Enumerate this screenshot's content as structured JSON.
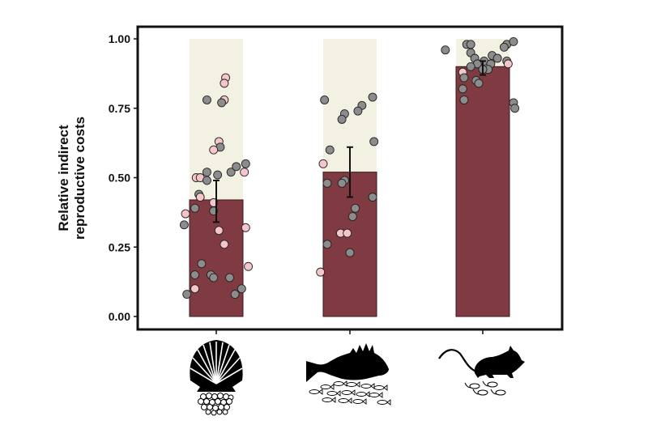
{
  "chart_data": {
    "type": "bar",
    "title": "",
    "xlabel": "",
    "ylabel": [
      "Relative indirect",
      "reproductive costs"
    ],
    "ylim": [
      0,
      1
    ],
    "yticks": [
      "0.00",
      "0.25",
      "0.50",
      "0.75",
      "1.00"
    ],
    "grid": false,
    "legend": null,
    "categories": [
      "scallop (eggs)",
      "fish (larvae)",
      "rodent (pups)"
    ],
    "category_icons": [
      "scallop-shell-with-eggs-icon",
      "fish-with-larvae-icon",
      "rodent-with-pups-icon"
    ],
    "values": [
      0.42,
      0.52,
      0.9
    ],
    "error_bars": [
      {
        "low": 0.34,
        "high": 0.49
      },
      {
        "low": 0.43,
        "high": 0.61
      },
      {
        "low": 0.87,
        "high": 0.92
      }
    ],
    "background_bar_value": 1.0,
    "colors": {
      "bar": "#7f3b41",
      "bar_edge": "#3a1a1c",
      "background_bar": "#f3f1e2",
      "point_gray": "#8c8c8c",
      "point_pink": "#f4c6cc",
      "point_edge": "#222222",
      "frame": "#111111"
    },
    "points": [
      [
        {
          "v": 0.86,
          "c": "pink",
          "dx": 0.35
        },
        {
          "v": 0.84,
          "c": "pink",
          "dx": 0.3
        },
        {
          "v": 0.78,
          "c": "pink",
          "dx": 0.3
        },
        {
          "v": 0.78,
          "c": "gray",
          "dx": -0.35
        },
        {
          "v": 0.77,
          "c": "gray",
          "dx": 0.2
        },
        {
          "v": 0.63,
          "c": "pink",
          "dx": 0.1
        },
        {
          "v": 0.61,
          "c": "gray",
          "dx": 0.15
        },
        {
          "v": 0.6,
          "c": "pink",
          "dx": -0.1
        },
        {
          "v": 0.52,
          "c": "gray",
          "dx": -0.35
        },
        {
          "v": 0.51,
          "c": "gray",
          "dx": 0.05
        },
        {
          "v": 0.52,
          "c": "gray",
          "dx": 0.55
        },
        {
          "v": 0.55,
          "c": "gray",
          "dx": 1.1
        },
        {
          "v": 0.54,
          "c": "gray",
          "dx": 0.75
        },
        {
          "v": 0.52,
          "c": "pink",
          "dx": 1.05
        },
        {
          "v": 0.5,
          "c": "pink",
          "dx": -0.75
        },
        {
          "v": 0.5,
          "c": "pink",
          "dx": -0.6
        },
        {
          "v": 0.49,
          "c": "gray",
          "dx": -0.35
        },
        {
          "v": 0.44,
          "c": "gray",
          "dx": -0.65
        },
        {
          "v": 0.43,
          "c": "pink",
          "dx": -0.6
        },
        {
          "v": 0.39,
          "c": "gray",
          "dx": -0.8
        },
        {
          "v": 0.37,
          "c": "pink",
          "dx": -1.15
        },
        {
          "v": 0.33,
          "c": "gray",
          "dx": -1.2
        },
        {
          "v": 0.41,
          "c": "pink",
          "dx": -0.1
        },
        {
          "v": 0.38,
          "c": "gray",
          "dx": -0.1
        },
        {
          "v": 0.32,
          "c": "pink",
          "dx": 1.1
        },
        {
          "v": 0.31,
          "c": "pink",
          "dx": 0.1
        },
        {
          "v": 0.26,
          "c": "pink",
          "dx": 0.3
        },
        {
          "v": 0.19,
          "c": "gray",
          "dx": -0.55
        },
        {
          "v": 0.18,
          "c": "pink",
          "dx": 1.2
        },
        {
          "v": 0.15,
          "c": "gray",
          "dx": -0.8
        },
        {
          "v": 0.15,
          "c": "gray",
          "dx": -0.2
        },
        {
          "v": 0.14,
          "c": "gray",
          "dx": -0.1
        },
        {
          "v": 0.14,
          "c": "gray",
          "dx": 0.5
        },
        {
          "v": 0.1,
          "c": "gray",
          "dx": 0.95
        },
        {
          "v": 0.1,
          "c": "pink",
          "dx": -0.8
        },
        {
          "v": 0.08,
          "c": "gray",
          "dx": 0.7
        },
        {
          "v": 0.08,
          "c": "gray",
          "dx": -1.1
        }
      ],
      [
        {
          "v": 0.78,
          "c": "gray",
          "dx": -0.95
        },
        {
          "v": 0.79,
          "c": "gray",
          "dx": 0.85
        },
        {
          "v": 0.76,
          "c": "gray",
          "dx": 0.45
        },
        {
          "v": 0.74,
          "c": "gray",
          "dx": 0.3
        },
        {
          "v": 0.73,
          "c": "gray",
          "dx": -0.2
        },
        {
          "v": 0.71,
          "c": "gray",
          "dx": -0.3
        },
        {
          "v": 0.63,
          "c": "gray",
          "dx": 0.9
        },
        {
          "v": 0.6,
          "c": "gray",
          "dx": -0.75
        },
        {
          "v": 0.55,
          "c": "pink",
          "dx": -1.0
        },
        {
          "v": 0.48,
          "c": "gray",
          "dx": -0.85
        },
        {
          "v": 0.49,
          "c": "gray",
          "dx": -0.2
        },
        {
          "v": 0.48,
          "c": "gray",
          "dx": -0.3
        },
        {
          "v": 0.43,
          "c": "gray",
          "dx": 0.85
        },
        {
          "v": 0.39,
          "c": "gray",
          "dx": 0.2
        },
        {
          "v": 0.36,
          "c": "gray",
          "dx": 0.1
        },
        {
          "v": 0.3,
          "c": "pink",
          "dx": -0.35
        },
        {
          "v": 0.3,
          "c": "pink",
          "dx": -0.1
        },
        {
          "v": 0.26,
          "c": "gray",
          "dx": -0.85
        },
        {
          "v": 0.23,
          "c": "gray",
          "dx": 0.0
        },
        {
          "v": 0.16,
          "c": "pink",
          "dx": -1.1
        }
      ],
      [
        {
          "v": 0.96,
          "c": "gray",
          "dx": -1.4
        },
        {
          "v": 0.98,
          "c": "gray",
          "dx": -0.6
        },
        {
          "v": 0.98,
          "c": "gray",
          "dx": -0.45
        },
        {
          "v": 0.98,
          "c": "gray",
          "dx": 0.9
        },
        {
          "v": 0.99,
          "c": "gray",
          "dx": 1.15
        },
        {
          "v": 0.97,
          "c": "gray",
          "dx": 0.8
        },
        {
          "v": 0.95,
          "c": "gray",
          "dx": -0.45
        },
        {
          "v": 0.94,
          "c": "gray",
          "dx": 0.35
        },
        {
          "v": 0.93,
          "c": "gray",
          "dx": 0.55
        },
        {
          "v": 0.93,
          "c": "gray",
          "dx": -0.3
        },
        {
          "v": 0.92,
          "c": "gray",
          "dx": 0.05
        },
        {
          "v": 0.91,
          "c": "gray",
          "dx": 0.3
        },
        {
          "v": 0.91,
          "c": "gray",
          "dx": -0.2
        },
        {
          "v": 0.92,
          "c": "gray",
          "dx": 0.9
        },
        {
          "v": 0.91,
          "c": "pink",
          "dx": 0.95
        },
        {
          "v": 0.9,
          "c": "gray",
          "dx": -0.45
        },
        {
          "v": 0.89,
          "c": "gray",
          "dx": 0.2
        },
        {
          "v": 0.88,
          "c": "pink",
          "dx": -0.75
        },
        {
          "v": 0.89,
          "c": "gray",
          "dx": 0.0
        },
        {
          "v": 0.86,
          "c": "gray",
          "dx": -0.7
        },
        {
          "v": 0.85,
          "c": "gray",
          "dx": -0.25
        },
        {
          "v": 0.84,
          "c": "gray",
          "dx": -0.15
        },
        {
          "v": 0.82,
          "c": "gray",
          "dx": -0.75
        },
        {
          "v": 0.78,
          "c": "gray",
          "dx": -0.7
        },
        {
          "v": 0.77,
          "c": "gray",
          "dx": 1.15
        },
        {
          "v": 0.75,
          "c": "gray",
          "dx": 1.2
        }
      ]
    ]
  }
}
